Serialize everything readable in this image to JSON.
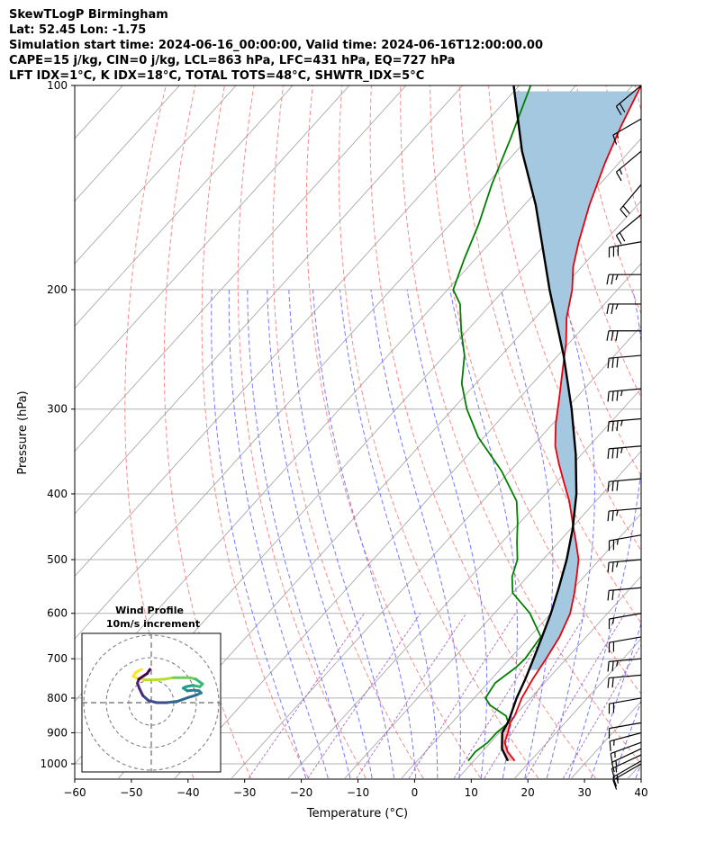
{
  "header": {
    "line1": "SkewTLogP Birmingham",
    "line2": "Lat: 52.45   Lon: -1.75",
    "line3": "Simulation start time: 2024-06-16_00:00:00, Valid time: 2024-06-16T12:00:00.00",
    "line4": "CAPE=15 j/kg, CIN=0 j/kg, LCL=863 hPa, LFC=431 hPa, EQ=727 hPa",
    "line5": "LFT IDX=1°C, K IDX=18°C, TOTAL TOTS=48°C, SHWTR_IDX=5°C"
  },
  "chart_data": {
    "type": "line",
    "subtype": "skew-t log-p",
    "xlabel": "Temperature (°C)",
    "ylabel": "Pressure (hPa)",
    "xlim": [
      -60,
      40
    ],
    "ylim": [
      1050,
      100
    ],
    "y_scale": "log",
    "grid": true,
    "x_ticks": [
      -60,
      -50,
      -40,
      -30,
      -20,
      -10,
      0,
      10,
      20,
      30,
      40
    ],
    "y_ticks": [
      1000,
      900,
      800,
      700,
      600,
      500,
      400,
      300,
      200,
      100
    ],
    "colors": {
      "temperature": "#e8000b",
      "dewpoint": "#008000",
      "parcel": "#000000",
      "cape_fill": "#a5c8e1",
      "dry_adiabat": "#f87777",
      "moist_adiabat": "#6a6aff",
      "mixing_ratio": "#9b59b6",
      "isotherm": "#aaaaaa"
    },
    "series": [
      {
        "id": "temperature",
        "pressure": [
          990,
          960,
          930,
          900,
          870,
          850,
          800,
          750,
          700,
          650,
          600,
          560,
          525,
          500,
          470,
          440,
          410,
          385,
          360,
          340,
          315,
          290,
          265,
          240,
          220,
          200,
          185,
          170,
          150,
          130,
          115,
          100
        ],
        "values": [
          17.2,
          14.5,
          12.5,
          11.5,
          10.3,
          10,
          8.4,
          7.3,
          6.4,
          5.3,
          3.4,
          0.9,
          -1.7,
          -3.7,
          -7.1,
          -10.8,
          -14.7,
          -18.6,
          -22.7,
          -26,
          -29.5,
          -32.8,
          -36.5,
          -40.5,
          -44.5,
          -48,
          -51.5,
          -54.5,
          -58.5,
          -62.5,
          -65.5,
          -68.5
        ]
      },
      {
        "id": "dewpoint",
        "pressure": [
          990,
          960,
          930,
          900,
          870,
          850,
          820,
          800,
          760,
          720,
          700,
          650,
          600,
          560,
          530,
          500,
          470,
          440,
          410,
          370,
          330,
          300,
          275,
          250,
          230,
          210,
          200,
          180,
          160,
          140,
          120,
          100
        ],
        "values": [
          9,
          8.8,
          9.5,
          9.5,
          10,
          8.5,
          4,
          2,
          1.3,
          2.5,
          2.7,
          2,
          -3.7,
          -10,
          -12.7,
          -14.5,
          -17.5,
          -20.5,
          -24,
          -31.5,
          -41,
          -47.5,
          -52.5,
          -56.5,
          -61,
          -65.5,
          -69,
          -72,
          -75,
          -79,
          -83,
          -88
        ]
      },
      {
        "id": "parcel",
        "pressure": [
          990,
          950,
          900,
          863,
          800,
          750,
          700,
          650,
          600,
          550,
          500,
          450,
          400,
          350,
          300,
          250,
          200,
          150,
          125,
          100
        ],
        "values": [
          16,
          13,
          10.5,
          9.7,
          7.5,
          6,
          4.2,
          2.2,
          0,
          -2.7,
          -5.8,
          -9.7,
          -14.6,
          -21,
          -29,
          -39,
          -52,
          -68,
          -79,
          -91
        ]
      }
    ],
    "cape_region": {
      "from_hPa": 727,
      "to_hPa": 100
    },
    "wind_barbs": {
      "pressure": [
        1000,
        990,
        970,
        950,
        930,
        900,
        870,
        800,
        740,
        700,
        650,
        600,
        550,
        500,
        460,
        420,
        380,
        340,
        310,
        280,
        250,
        230,
        210,
        190,
        170,
        155,
        140,
        125,
        112,
        100
      ],
      "speed_kt": [
        15,
        15,
        15,
        15,
        15,
        15,
        10,
        20,
        20,
        25,
        20,
        15,
        20,
        25,
        25,
        25,
        30,
        35,
        35,
        35,
        30,
        30,
        25,
        25,
        30,
        20,
        20,
        15,
        15,
        20
      ],
      "direction_deg": [
        240,
        240,
        245,
        245,
        250,
        255,
        260,
        260,
        265,
        265,
        260,
        260,
        265,
        265,
        260,
        265,
        265,
        265,
        265,
        265,
        265,
        270,
        270,
        270,
        260,
        230,
        220,
        230,
        240,
        230
      ]
    },
    "inset": {
      "title": "Wind Profile",
      "subtitle": "10m/s increment",
      "hodograph": {
        "u": [
          -1.4,
          -2.2,
          -2.6,
          -2.0,
          -1.0,
          0.5,
          2.0,
          3.2,
          4.6,
          5.6,
          6.4,
          7.4,
          7.0,
          6.0,
          5.0,
          4.6,
          5.2,
          6.2,
          6.9,
          7.2,
          6.5,
          5.2,
          3.8,
          2.2,
          0.8,
          -0.4,
          -1.2,
          -1.7,
          -2.0,
          -1.8,
          -0.6,
          -0.2
        ],
        "v": [
          4.8,
          4.4,
          3.8,
          3.5,
          3.3,
          3.3,
          3.4,
          3.6,
          3.6,
          3.6,
          3.4,
          2.7,
          2.3,
          2.5,
          2.3,
          2.1,
          1.7,
          1.8,
          1.7,
          1.4,
          1.1,
          0.7,
          0.2,
          0.0,
          0.0,
          0.3,
          1.0,
          2.0,
          2.8,
          3.4,
          4.2,
          4.8
        ]
      }
    }
  }
}
